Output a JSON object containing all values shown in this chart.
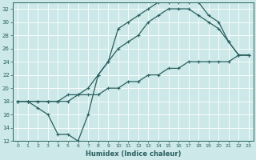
{
  "xlabel": "Humidex (Indice chaleur)",
  "bg_color": "#cce8e8",
  "grid_color": "#b8d8d8",
  "line_color": "#2a6060",
  "xlim": [
    -0.5,
    23.5
  ],
  "ylim": [
    12,
    33
  ],
  "xticks": [
    0,
    1,
    2,
    3,
    4,
    5,
    6,
    7,
    8,
    9,
    10,
    11,
    12,
    13,
    14,
    15,
    16,
    17,
    18,
    19,
    20,
    21,
    22,
    23
  ],
  "yticks": [
    12,
    14,
    16,
    18,
    20,
    22,
    24,
    26,
    28,
    30,
    32
  ],
  "line1_x": [
    0,
    1,
    2,
    3,
    4,
    5,
    6,
    7,
    8,
    9,
    10,
    11,
    12,
    13,
    14,
    15,
    16,
    17,
    18,
    19,
    20,
    21,
    22,
    23
  ],
  "line1_y": [
    18,
    18,
    17,
    16,
    13,
    13,
    12,
    16,
    22,
    24,
    29,
    30,
    31,
    32,
    33,
    33,
    33,
    33,
    33,
    31,
    30,
    27,
    25,
    25
  ],
  "line2_x": [
    0,
    1,
    2,
    3,
    4,
    5,
    6,
    7,
    8,
    9,
    10,
    11,
    12,
    13,
    14,
    15,
    16,
    17,
    18,
    19,
    20,
    21,
    22,
    23
  ],
  "line2_y": [
    18,
    18,
    18,
    18,
    18,
    19,
    19,
    20,
    22,
    24,
    26,
    27,
    28,
    30,
    31,
    32,
    32,
    32,
    31,
    30,
    29,
    27,
    25,
    25
  ],
  "line3_x": [
    0,
    1,
    2,
    3,
    4,
    5,
    6,
    7,
    8,
    9,
    10,
    11,
    12,
    13,
    14,
    15,
    16,
    17,
    18,
    19,
    20,
    21,
    22,
    23
  ],
  "line3_y": [
    18,
    18,
    18,
    18,
    18,
    18,
    19,
    19,
    19,
    20,
    20,
    21,
    21,
    22,
    22,
    23,
    23,
    24,
    24,
    24,
    24,
    24,
    25,
    25
  ]
}
